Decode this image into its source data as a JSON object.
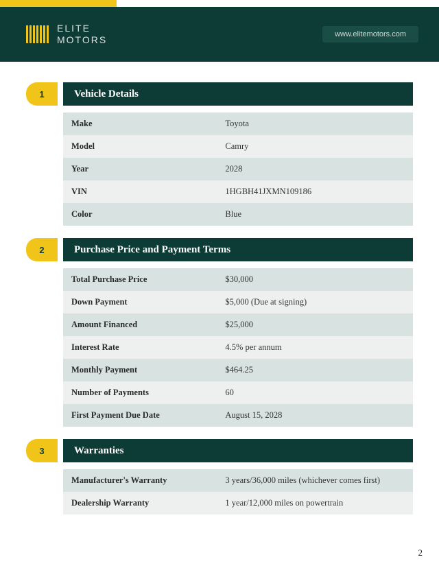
{
  "colors": {
    "accent_yellow": "#f0c419",
    "brand_dark": "#0d3b36",
    "row_odd": "#d7e2e1",
    "row_even": "#eef0ef",
    "pill_bg": "#1a4d46"
  },
  "header": {
    "brand_line1": "ELITE",
    "brand_line2": "MOTORS",
    "url": "www.elitemotors.com"
  },
  "sections": [
    {
      "num": "1",
      "title": "Vehicle Details",
      "rows": [
        {
          "label": "Make",
          "value": "Toyota"
        },
        {
          "label": "Model",
          "value": "Camry"
        },
        {
          "label": "Year",
          "value": "2028"
        },
        {
          "label": "VIN",
          "value": "1HGBH41JXMN109186"
        },
        {
          "label": "Color",
          "value": "Blue"
        }
      ]
    },
    {
      "num": "2",
      "title": "Purchase Price and Payment Terms",
      "rows": [
        {
          "label": "Total Purchase Price",
          "value": "$30,000"
        },
        {
          "label": "Down Payment",
          "value": "$5,000 (Due at signing)"
        },
        {
          "label": "Amount Financed",
          "value": "$25,000"
        },
        {
          "label": "Interest Rate",
          "value": "4.5% per annum"
        },
        {
          "label": "Monthly Payment",
          "value": "$464.25"
        },
        {
          "label": "Number of Payments",
          "value": "60"
        },
        {
          "label": "First Payment Due Date",
          "value": "August 15, 2028"
        }
      ]
    },
    {
      "num": "3",
      "title": "Warranties",
      "rows": [
        {
          "label": "Manufacturer's Warranty",
          "value": "3 years/36,000 miles (whichever comes first)"
        },
        {
          "label": "Dealership Warranty",
          "value": "1 year/12,000 miles on powertrain"
        }
      ]
    }
  ],
  "page_number": "2"
}
